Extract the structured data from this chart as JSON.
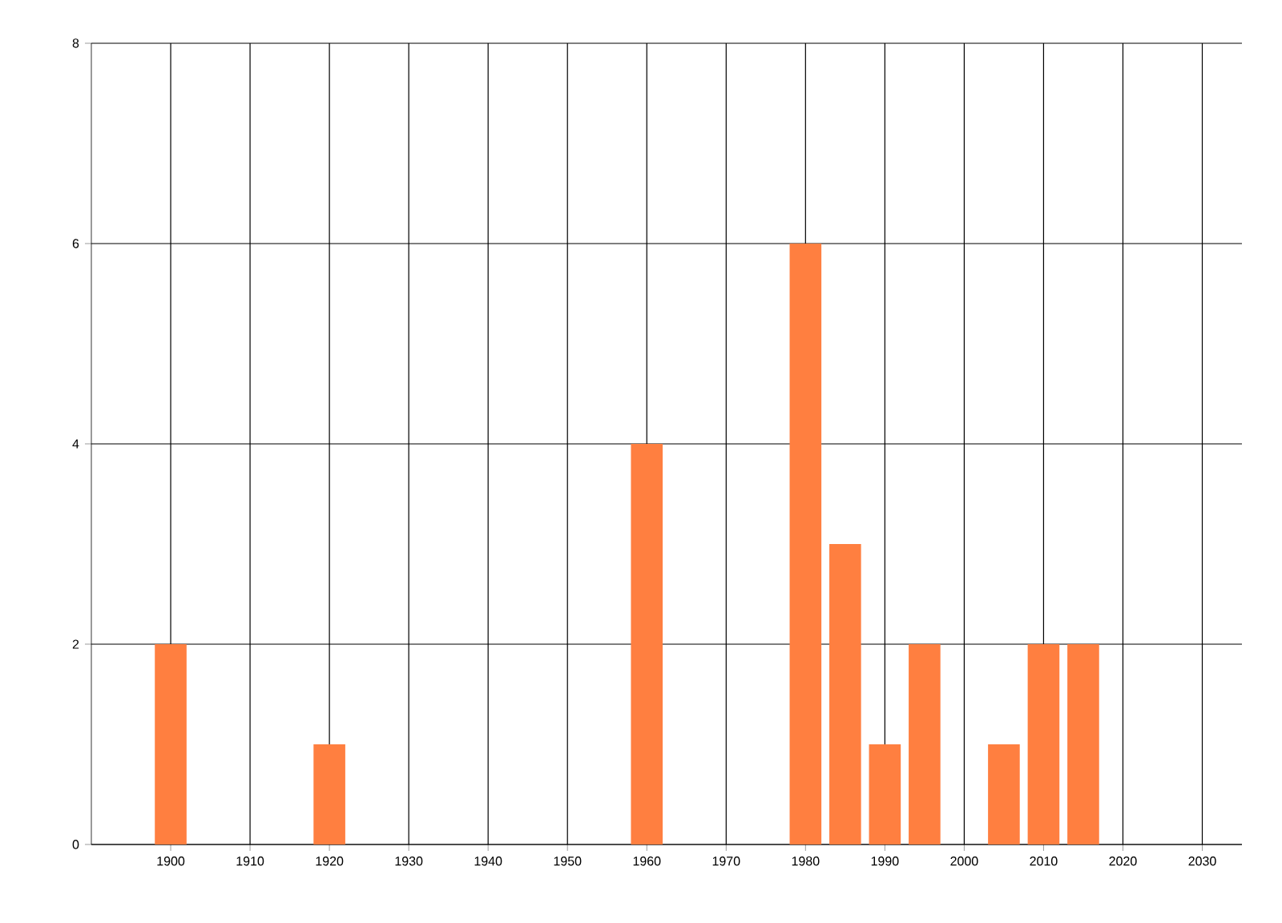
{
  "chart_data": {
    "type": "bar",
    "x": [
      1900,
      1920,
      1960,
      1980,
      1985,
      1990,
      1995,
      2005,
      2010,
      2015
    ],
    "values": [
      2,
      1,
      4,
      6,
      3,
      1,
      2,
      1,
      2,
      2
    ],
    "color": "#ff7f40",
    "xlim": [
      1890,
      2035
    ],
    "ylim": [
      0,
      8
    ],
    "xticks": [
      1900,
      1910,
      1920,
      1930,
      1940,
      1950,
      1960,
      1970,
      1980,
      1990,
      2000,
      2010,
      2020,
      2030
    ],
    "yticks": [
      0,
      2,
      4,
      6,
      8
    ],
    "grid": true
  }
}
